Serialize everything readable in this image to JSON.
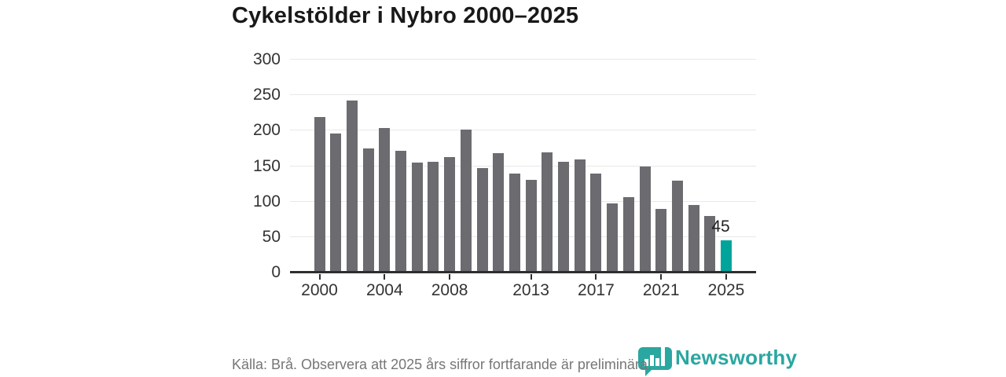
{
  "title": "Cykelstölder i Nybro 2000–2025",
  "chart_data": {
    "type": "bar",
    "title": "Cykelstölder i Nybro 2000–2025",
    "x": [
      2000,
      2001,
      2002,
      2003,
      2004,
      2005,
      2006,
      2007,
      2008,
      2009,
      2010,
      2011,
      2012,
      2013,
      2014,
      2015,
      2016,
      2017,
      2018,
      2019,
      2020,
      2021,
      2022,
      2023,
      2024,
      2025
    ],
    "values": [
      219,
      196,
      243,
      175,
      204,
      172,
      155,
      156,
      163,
      201,
      147,
      168,
      139,
      131,
      169,
      156,
      159,
      139,
      97,
      106,
      149,
      90,
      130,
      95,
      80,
      45
    ],
    "highlight_index": 25,
    "highlight_label": "45",
    "xticks": [
      2000,
      2004,
      2008,
      2013,
      2017,
      2021,
      2025
    ],
    "yticks": [
      0,
      50,
      100,
      150,
      200,
      250,
      300
    ],
    "ylim": [
      0,
      300
    ],
    "grid": true,
    "legend": "none",
    "xlabel": "",
    "ylabel": ""
  },
  "colors": {
    "bar": "#6b6b70",
    "highlight": "#00a49b",
    "brand_teal": "#2aa7a0",
    "grid": "#e8e8e8",
    "axis": "#2e2e2e",
    "title_text": "#191919",
    "axis_text": "#333333",
    "footer_text": "#767676"
  },
  "footer": {
    "source_text": "Källa: Brå. Observera att 2025 års siffror fortfarande är preliminära.",
    "brand": "Newsworthy"
  },
  "logo": {
    "icon": "newsworthy-chart-bubble-icon",
    "text": "Newsworthy"
  }
}
